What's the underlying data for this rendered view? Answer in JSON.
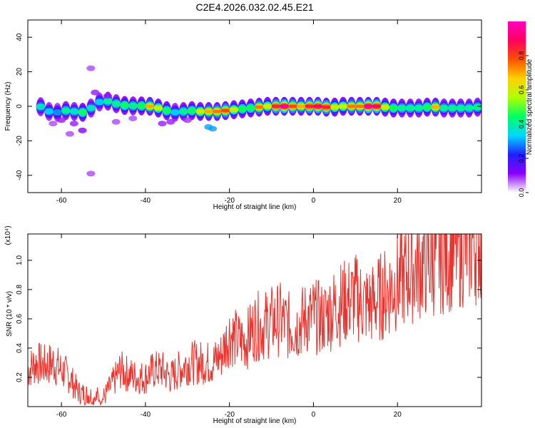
{
  "title": "C2E4.2026.032.02.45.E21",
  "chart_data": [
    {
      "type": "heatmap",
      "title": "C2E4.2026.032.02.45.E21",
      "xlabel": "Height of straight line (km)",
      "ylabel": "Frequency (Hz)",
      "xlim": [
        -68,
        40
      ],
      "ylim": [
        -50,
        50
      ],
      "x_ticks": [
        -60,
        -40,
        -20,
        0,
        20
      ],
      "x_tick_labels": [
        "-60",
        "-40",
        "-20",
        "0",
        "20"
      ],
      "y_ticks": [
        -40,
        -20,
        0,
        20,
        40
      ],
      "y_tick_labels": [
        "-40",
        "-20",
        "0",
        "20",
        "40"
      ],
      "grid": false,
      "ridge": [
        {
          "x": -66,
          "f": 1.5,
          "a": 0.4
        },
        {
          "x": -64,
          "f": -2,
          "a": 0.35
        },
        {
          "x": -62,
          "f": -4,
          "a": 0.3
        },
        {
          "x": -60,
          "f": -3,
          "a": 0.45
        },
        {
          "x": -58,
          "f": -2,
          "a": 0.4
        },
        {
          "x": -56,
          "f": -4,
          "a": 0.5
        },
        {
          "x": -54,
          "f": -3,
          "a": 0.4
        },
        {
          "x": -52,
          "f": 1,
          "a": 0.35
        },
        {
          "x": -50,
          "f": 4,
          "a": 0.45
        },
        {
          "x": -48,
          "f": 2,
          "a": 0.45
        },
        {
          "x": -46,
          "f": 1,
          "a": 0.5
        },
        {
          "x": -44,
          "f": 0,
          "a": 0.45
        },
        {
          "x": -42,
          "f": 0.5,
          "a": 0.5
        },
        {
          "x": -40,
          "f": 0,
          "a": 0.7
        },
        {
          "x": -38,
          "f": 0,
          "a": 0.6
        },
        {
          "x": -36,
          "f": -2,
          "a": 0.5
        },
        {
          "x": -34,
          "f": -3,
          "a": 0.35
        },
        {
          "x": -32,
          "f": -4,
          "a": 0.45
        },
        {
          "x": -30,
          "f": -2,
          "a": 0.5
        },
        {
          "x": -28,
          "f": -3,
          "a": 0.6
        },
        {
          "x": -26,
          "f": -3,
          "a": 0.7
        },
        {
          "x": -24,
          "f": -3,
          "a": 0.75
        },
        {
          "x": -22,
          "f": -3,
          "a": 0.8
        },
        {
          "x": -20,
          "f": -2,
          "a": 0.6
        },
        {
          "x": -18,
          "f": -2,
          "a": 0.5
        },
        {
          "x": -16,
          "f": -1,
          "a": 0.5
        },
        {
          "x": -14,
          "f": -1,
          "a": 0.75
        },
        {
          "x": -12,
          "f": 0,
          "a": 0.6
        },
        {
          "x": -10,
          "f": 0,
          "a": 0.85
        },
        {
          "x": -8,
          "f": 0,
          "a": 0.95
        },
        {
          "x": -6,
          "f": 0,
          "a": 0.8
        },
        {
          "x": -4,
          "f": 0,
          "a": 0.7
        },
        {
          "x": -2,
          "f": 0,
          "a": 0.85
        },
        {
          "x": 0,
          "f": 0,
          "a": 0.9
        },
        {
          "x": 2,
          "f": 0,
          "a": 0.85
        },
        {
          "x": 4,
          "f": -1,
          "a": 0.6
        },
        {
          "x": 6,
          "f": 0,
          "a": 0.6
        },
        {
          "x": 8,
          "f": 0,
          "a": 0.75
        },
        {
          "x": 10,
          "f": 0,
          "a": 0.75
        },
        {
          "x": 12,
          "f": 0,
          "a": 0.95
        },
        {
          "x": 14,
          "f": 0,
          "a": 0.9
        },
        {
          "x": 16,
          "f": 0,
          "a": 0.6
        },
        {
          "x": 18,
          "f": -1,
          "a": 0.5
        },
        {
          "x": 20,
          "f": -1,
          "a": 0.45
        },
        {
          "x": 22,
          "f": -1,
          "a": 0.45
        },
        {
          "x": 24,
          "f": -1,
          "a": 0.45
        },
        {
          "x": 26,
          "f": -1,
          "a": 0.5
        },
        {
          "x": 28,
          "f": 0,
          "a": 0.7
        },
        {
          "x": 30,
          "f": -1,
          "a": 0.45
        },
        {
          "x": 32,
          "f": -1,
          "a": 0.45
        },
        {
          "x": 34,
          "f": -1,
          "a": 0.45
        },
        {
          "x": 36,
          "f": -1,
          "a": 0.45
        },
        {
          "x": 38,
          "f": -1,
          "a": 0.45
        },
        {
          "x": 40,
          "f": 0,
          "a": 0.45
        }
      ],
      "blobs": [
        {
          "x": -24,
          "f": -13,
          "a": 0.3
        },
        {
          "x": -25,
          "f": -12,
          "a": 0.3
        },
        {
          "x": -53,
          "f": 22,
          "a": 0.08
        },
        {
          "x": -53,
          "f": -39,
          "a": 0.08
        },
        {
          "x": -60,
          "f": -8,
          "a": 0.1
        },
        {
          "x": -55,
          "f": -14,
          "a": 0.12
        },
        {
          "x": -57,
          "f": -10,
          "a": 0.1
        },
        {
          "x": -47,
          "f": -9,
          "a": 0.08
        },
        {
          "x": -43,
          "f": -7,
          "a": 0.08
        },
        {
          "x": -34,
          "f": -9,
          "a": 0.1
        },
        {
          "x": -36,
          "f": -10,
          "a": 0.1
        },
        {
          "x": -30,
          "f": -8,
          "a": 0.09
        },
        {
          "x": -52,
          "f": 8,
          "a": 0.1
        },
        {
          "x": -49,
          "f": 6,
          "a": 0.1
        },
        {
          "x": -62,
          "f": -10,
          "a": 0.08
        },
        {
          "x": -58,
          "f": -16,
          "a": 0.08
        }
      ]
    },
    {
      "type": "line",
      "xlabel": "Height of straight line (km)",
      "ylabel": "SNR (10 * v/v)",
      "scale_label": "(x10⁴)",
      "xlim": [
        -68,
        40
      ],
      "ylim": [
        0,
        1.18
      ],
      "x_ticks": [
        -60,
        -40,
        -20,
        0,
        20
      ],
      "x_tick_labels": [
        "-60",
        "-40",
        "-20",
        "0",
        "20"
      ],
      "y_ticks": [
        0.2,
        0.4,
        0.6,
        0.8,
        1.0
      ],
      "y_tick_labels": [
        "0.2",
        "0.4",
        "0.6",
        "0.8",
        "1.0"
      ],
      "grid": false,
      "line_color": "#e8342e",
      "series": [
        {
          "x": [
            -68,
            -66,
            -64,
            -62,
            -60,
            -58,
            -56,
            -54,
            -52,
            -50,
            -48,
            -46,
            -44,
            -42,
            -40,
            -38,
            -36,
            -34,
            -32,
            -30,
            -28,
            -26,
            -24,
            -22,
            -20,
            -18,
            -16,
            -14,
            -12,
            -10,
            -8,
            -6,
            -4,
            -2,
            0,
            2,
            4,
            6,
            8,
            10,
            12,
            14,
            16,
            18,
            20,
            22,
            24,
            26,
            28,
            30,
            32,
            34,
            36,
            38,
            40
          ],
          "values": [
            0.25,
            0.3,
            0.28,
            0.3,
            0.25,
            0.2,
            0.1,
            0.08,
            0.07,
            0.06,
            0.15,
            0.25,
            0.22,
            0.2,
            0.2,
            0.25,
            0.25,
            0.2,
            0.25,
            0.3,
            0.3,
            0.3,
            0.3,
            0.35,
            0.5,
            0.45,
            0.45,
            0.55,
            0.55,
            0.58,
            0.6,
            0.55,
            0.55,
            0.6,
            0.62,
            0.6,
            0.65,
            0.7,
            0.72,
            0.75,
            0.7,
            0.7,
            0.75,
            0.8,
            0.85,
            0.9,
            0.95,
            0.98,
            1.0,
            1.03,
            1.05,
            1.08,
            1.1,
            1.12,
            1.13
          ]
        }
      ]
    }
  ],
  "colorbar": {
    "label": "Normalized spectral amplitude",
    "range": [
      0,
      1
    ],
    "ticks": [
      0.0,
      0.2,
      0.4,
      0.6,
      0.8
    ],
    "tick_labels": [
      "0.0",
      "0.2",
      "0.4",
      "0.6",
      "0.8"
    ],
    "stops": [
      "#ffffff",
      "#8a00ff",
      "#2020ff",
      "#00d8ff",
      "#00ff60",
      "#b0ff00",
      "#ffd000",
      "#ff5000",
      "#ff0060",
      "#ff00c0"
    ]
  }
}
